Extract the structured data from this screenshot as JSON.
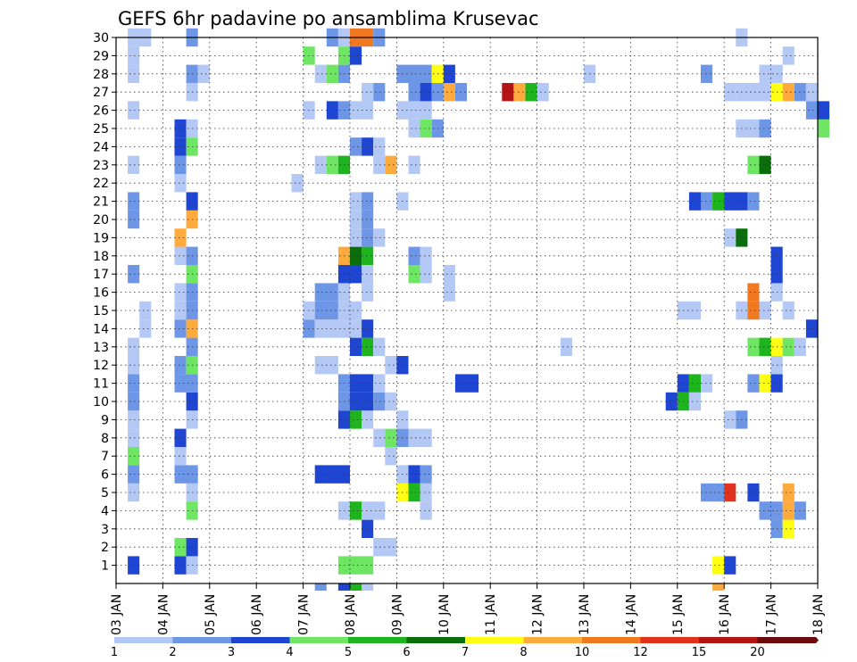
{
  "chart_data": {
    "type": "heatmap",
    "title": "GEFS 6hr padavine po ansamblima Krusevac",
    "xlabel": "",
    "ylabel": "",
    "grid": true,
    "x_range": [
      0,
      15
    ],
    "y_range": [
      0,
      30
    ],
    "x_tick_labels": [
      "03 JAN",
      "04 JAN",
      "05 JAN",
      "06 JAN",
      "07 JAN",
      "08 JAN",
      "09 JAN",
      "10 JAN",
      "11 JAN",
      "12 JAN",
      "13 JAN",
      "14 JAN",
      "15 JAN",
      "16 JAN",
      "17 JAN",
      "18 JAN"
    ],
    "y_tick_labels": [
      "1",
      "2",
      "3",
      "4",
      "5",
      "6",
      "7",
      "8",
      "9",
      "10",
      "11",
      "12",
      "13",
      "14",
      "15",
      "16",
      "17",
      "18",
      "19",
      "20",
      "21",
      "22",
      "23",
      "24",
      "25",
      "26",
      "27",
      "28",
      "29",
      "30"
    ],
    "colorbar": {
      "labels": [
        "1",
        "2",
        "3",
        "4",
        "5",
        "6",
        "7",
        "8",
        "10",
        "12",
        "15",
        "20"
      ],
      "colors": [
        "#b4c8f5",
        "#6e96e6",
        "#1e46d2",
        "#6ee664",
        "#1eb41e",
        "#0a6e0a",
        "#ffff14",
        "#ffaa3c",
        "#f0781e",
        "#e1321e",
        "#b41414",
        "#6e0a0a"
      ]
    },
    "cells_note": "each row: [ensemble_member, x_start_days_after_03_JAN, x_end_days_after_03_JAN, colorbar_class_index]",
    "cells": [
      [
        1,
        0.25,
        0.5,
        2
      ],
      [
        1,
        1.25,
        1.5,
        2
      ],
      [
        1,
        1.5,
        1.75,
        0
      ],
      [
        1,
        4.75,
        5.5,
        3
      ],
      [
        1,
        12.75,
        13.0,
        6
      ],
      [
        1,
        13.0,
        13.25,
        2
      ],
      [
        2,
        1.25,
        1.5,
        3
      ],
      [
        2,
        1.5,
        1.75,
        2
      ],
      [
        2,
        5.5,
        6.0,
        0
      ],
      [
        3,
        5.25,
        5.5,
        2
      ],
      [
        3,
        14.0,
        14.25,
        1
      ],
      [
        3,
        14.25,
        14.5,
        6
      ],
      [
        4,
        1.5,
        1.75,
        3
      ],
      [
        4,
        4.75,
        5.0,
        0
      ],
      [
        4,
        5.0,
        5.25,
        4
      ],
      [
        4,
        5.25,
        5.75,
        0
      ],
      [
        4,
        6.5,
        6.75,
        0
      ],
      [
        4,
        13.75,
        14.25,
        1
      ],
      [
        4,
        14.25,
        14.5,
        7
      ],
      [
        4,
        14.5,
        14.75,
        1
      ],
      [
        5,
        0.25,
        0.5,
        0
      ],
      [
        5,
        1.5,
        1.75,
        0
      ],
      [
        5,
        6.0,
        6.25,
        6
      ],
      [
        5,
        6.25,
        6.5,
        4
      ],
      [
        5,
        6.5,
        6.75,
        0
      ],
      [
        5,
        12.5,
        13.0,
        1
      ],
      [
        5,
        13.0,
        13.25,
        9
      ],
      [
        5,
        13.5,
        13.75,
        2
      ],
      [
        5,
        14.25,
        14.5,
        7
      ],
      [
        6,
        0.25,
        0.5,
        1
      ],
      [
        6,
        1.25,
        1.75,
        1
      ],
      [
        6,
        4.25,
        5.0,
        2
      ],
      [
        6,
        6.0,
        6.25,
        0
      ],
      [
        6,
        6.25,
        6.5,
        2
      ],
      [
        6,
        6.5,
        6.75,
        1
      ],
      [
        7,
        0.25,
        0.5,
        3
      ],
      [
        7,
        1.25,
        1.5,
        0
      ],
      [
        7,
        5.75,
        6.0,
        0
      ],
      [
        8,
        0.25,
        0.5,
        0
      ],
      [
        8,
        1.25,
        1.5,
        2
      ],
      [
        8,
        5.5,
        5.75,
        0
      ],
      [
        8,
        5.75,
        6.0,
        3
      ],
      [
        8,
        6.0,
        6.25,
        1
      ],
      [
        8,
        6.25,
        6.75,
        0
      ],
      [
        9,
        0.25,
        0.5,
        0
      ],
      [
        9,
        1.5,
        1.75,
        0
      ],
      [
        9,
        4.75,
        5.0,
        2
      ],
      [
        9,
        5.0,
        5.25,
        4
      ],
      [
        9,
        5.25,
        5.5,
        0
      ],
      [
        9,
        6.0,
        6.25,
        0
      ],
      [
        9,
        13.0,
        13.25,
        0
      ],
      [
        9,
        13.25,
        13.5,
        1
      ],
      [
        10,
        0.25,
        0.5,
        1
      ],
      [
        10,
        1.5,
        1.75,
        2
      ],
      [
        10,
        4.75,
        5.0,
        1
      ],
      [
        10,
        5.0,
        5.5,
        2
      ],
      [
        10,
        5.5,
        5.75,
        1
      ],
      [
        10,
        5.75,
        6.0,
        0
      ],
      [
        10,
        11.75,
        12.0,
        2
      ],
      [
        10,
        12.0,
        12.25,
        4
      ],
      [
        10,
        12.25,
        12.5,
        0
      ],
      [
        11,
        0.25,
        0.5,
        1
      ],
      [
        11,
        1.25,
        1.75,
        1
      ],
      [
        11,
        4.75,
        5.0,
        1
      ],
      [
        11,
        5.0,
        5.5,
        2
      ],
      [
        11,
        5.5,
        5.75,
        0
      ],
      [
        11,
        7.25,
        7.75,
        2
      ],
      [
        11,
        12.0,
        12.25,
        2
      ],
      [
        11,
        12.25,
        12.5,
        4
      ],
      [
        11,
        12.5,
        12.75,
        0
      ],
      [
        11,
        13.5,
        13.75,
        1
      ],
      [
        11,
        13.75,
        14.0,
        6
      ],
      [
        11,
        14.0,
        14.25,
        2
      ],
      [
        12,
        0.25,
        0.5,
        0
      ],
      [
        12,
        1.25,
        1.5,
        1
      ],
      [
        12,
        1.5,
        1.75,
        3
      ],
      [
        12,
        4.25,
        4.75,
        0
      ],
      [
        12,
        5.75,
        6.0,
        0
      ],
      [
        12,
        6.0,
        6.25,
        2
      ],
      [
        12,
        14.0,
        14.25,
        0
      ],
      [
        13,
        0.25,
        0.5,
        0
      ],
      [
        13,
        1.5,
        1.75,
        1
      ],
      [
        13,
        5.0,
        5.25,
        2
      ],
      [
        13,
        5.25,
        5.5,
        4
      ],
      [
        13,
        5.5,
        5.75,
        0
      ],
      [
        13,
        9.5,
        9.75,
        0
      ],
      [
        13,
        13.5,
        13.75,
        3
      ],
      [
        13,
        13.75,
        14.0,
        4
      ],
      [
        13,
        14.0,
        14.25,
        6
      ],
      [
        13,
        14.25,
        14.5,
        3
      ],
      [
        13,
        14.5,
        14.75,
        0
      ],
      [
        14,
        0.5,
        0.75,
        0
      ],
      [
        14,
        1.25,
        1.5,
        1
      ],
      [
        14,
        1.5,
        1.75,
        7
      ],
      [
        14,
        4.0,
        4.25,
        1
      ],
      [
        14,
        4.25,
        5.25,
        0
      ],
      [
        14,
        5.25,
        5.5,
        2
      ],
      [
        14,
        14.75,
        15.0,
        2
      ],
      [
        15,
        0.5,
        0.75,
        0
      ],
      [
        15,
        1.25,
        1.5,
        0
      ],
      [
        15,
        1.5,
        1.75,
        1
      ],
      [
        15,
        4.0,
        4.25,
        0
      ],
      [
        15,
        4.25,
        4.75,
        1
      ],
      [
        15,
        4.75,
        5.25,
        0
      ],
      [
        15,
        12.0,
        12.5,
        0
      ],
      [
        15,
        13.25,
        13.5,
        0
      ],
      [
        15,
        13.5,
        13.75,
        8
      ],
      [
        15,
        13.75,
        14.0,
        0
      ],
      [
        15,
        14.25,
        14.5,
        0
      ],
      [
        16,
        1.25,
        1.5,
        0
      ],
      [
        16,
        1.5,
        1.75,
        1
      ],
      [
        16,
        4.25,
        4.75,
        1
      ],
      [
        16,
        4.75,
        5.0,
        0
      ],
      [
        16,
        5.25,
        5.5,
        0
      ],
      [
        16,
        7.0,
        7.25,
        0
      ],
      [
        16,
        13.5,
        13.75,
        8
      ],
      [
        16,
        14.0,
        14.25,
        0
      ],
      [
        17,
        0.25,
        0.5,
        1
      ],
      [
        17,
        1.5,
        1.75,
        3
      ],
      [
        17,
        4.75,
        5.25,
        2
      ],
      [
        17,
        5.25,
        5.5,
        0
      ],
      [
        17,
        6.25,
        6.5,
        3
      ],
      [
        17,
        6.5,
        6.75,
        0
      ],
      [
        17,
        7.0,
        7.25,
        0
      ],
      [
        17,
        14.0,
        14.25,
        2
      ],
      [
        18,
        1.25,
        1.5,
        0
      ],
      [
        18,
        1.5,
        1.75,
        1
      ],
      [
        18,
        4.75,
        5.0,
        7
      ],
      [
        18,
        5.0,
        5.25,
        5
      ],
      [
        18,
        5.25,
        5.5,
        4
      ],
      [
        18,
        6.25,
        6.5,
        1
      ],
      [
        18,
        6.5,
        6.75,
        0
      ],
      [
        18,
        14.0,
        14.25,
        2
      ],
      [
        19,
        1.25,
        1.5,
        7
      ],
      [
        19,
        5.0,
        5.25,
        0
      ],
      [
        19,
        5.25,
        5.5,
        1
      ],
      [
        19,
        5.5,
        5.75,
        0
      ],
      [
        19,
        13.0,
        13.25,
        0
      ],
      [
        19,
        13.25,
        13.5,
        5
      ],
      [
        20,
        0.25,
        0.5,
        1
      ],
      [
        20,
        1.5,
        1.75,
        7
      ],
      [
        20,
        5.0,
        5.25,
        0
      ],
      [
        20,
        5.25,
        5.5,
        1
      ],
      [
        21,
        0.25,
        0.5,
        1
      ],
      [
        21,
        1.5,
        1.75,
        2
      ],
      [
        21,
        5.0,
        5.25,
        0
      ],
      [
        21,
        5.25,
        5.5,
        1
      ],
      [
        21,
        6.0,
        6.25,
        0
      ],
      [
        21,
        12.25,
        12.5,
        2
      ],
      [
        21,
        12.5,
        12.75,
        1
      ],
      [
        21,
        12.75,
        13.0,
        4
      ],
      [
        21,
        13.0,
        13.5,
        2
      ],
      [
        21,
        13.5,
        13.75,
        1
      ],
      [
        22,
        1.25,
        1.5,
        0
      ],
      [
        22,
        3.75,
        4.0,
        0
      ],
      [
        23,
        0.25,
        0.5,
        0
      ],
      [
        23,
        1.25,
        1.5,
        1
      ],
      [
        23,
        4.25,
        4.5,
        0
      ],
      [
        23,
        4.5,
        4.75,
        3
      ],
      [
        23,
        4.75,
        5.0,
        4
      ],
      [
        23,
        5.5,
        5.75,
        0
      ],
      [
        23,
        5.75,
        6.0,
        7
      ],
      [
        23,
        6.25,
        6.5,
        0
      ],
      [
        23,
        13.5,
        13.75,
        3
      ],
      [
        23,
        13.75,
        14.0,
        5
      ],
      [
        24,
        1.25,
        1.5,
        2
      ],
      [
        24,
        1.5,
        1.75,
        3
      ],
      [
        24,
        5.0,
        5.25,
        1
      ],
      [
        24,
        5.25,
        5.5,
        2
      ],
      [
        24,
        5.5,
        5.75,
        0
      ],
      [
        25,
        1.25,
        1.5,
        2
      ],
      [
        25,
        1.5,
        1.75,
        0
      ],
      [
        25,
        6.25,
        6.5,
        0
      ],
      [
        25,
        6.5,
        6.75,
        3
      ],
      [
        25,
        6.75,
        7.0,
        1
      ],
      [
        25,
        13.25,
        13.75,
        0
      ],
      [
        25,
        13.75,
        14.0,
        1
      ],
      [
        25,
        15.0,
        15.25,
        3
      ],
      [
        26,
        0.25,
        0.5,
        0
      ],
      [
        26,
        4.0,
        4.25,
        0
      ],
      [
        26,
        4.5,
        4.75,
        2
      ],
      [
        26,
        4.75,
        5.0,
        1
      ],
      [
        26,
        5.0,
        5.5,
        0
      ],
      [
        26,
        6.0,
        6.75,
        0
      ],
      [
        26,
        14.75,
        15.0,
        1
      ],
      [
        26,
        15.0,
        15.25,
        2
      ],
      [
        27,
        1.5,
        1.75,
        0
      ],
      [
        27,
        5.25,
        5.5,
        0
      ],
      [
        27,
        5.5,
        5.75,
        1
      ],
      [
        27,
        6.25,
        6.5,
        1
      ],
      [
        27,
        6.5,
        6.75,
        2
      ],
      [
        27,
        6.75,
        7.0,
        1
      ],
      [
        27,
        7.0,
        7.25,
        7
      ],
      [
        27,
        7.25,
        7.5,
        1
      ],
      [
        27,
        8.25,
        8.5,
        10
      ],
      [
        27,
        8.5,
        8.75,
        7
      ],
      [
        27,
        8.75,
        9.0,
        4
      ],
      [
        27,
        9.0,
        9.25,
        0
      ],
      [
        27,
        13.0,
        13.25,
        0
      ],
      [
        27,
        13.25,
        14.0,
        0
      ],
      [
        27,
        14.0,
        14.25,
        6
      ],
      [
        27,
        14.25,
        14.5,
        7
      ],
      [
        27,
        14.5,
        14.75,
        1
      ],
      [
        27,
        14.75,
        15.0,
        0
      ],
      [
        28,
        0.25,
        0.5,
        0
      ],
      [
        28,
        1.5,
        1.75,
        1
      ],
      [
        28,
        1.75,
        2.0,
        0
      ],
      [
        28,
        4.25,
        4.5,
        0
      ],
      [
        28,
        4.5,
        4.75,
        3
      ],
      [
        28,
        4.75,
        5.0,
        1
      ],
      [
        28,
        6.0,
        6.75,
        1
      ],
      [
        28,
        6.75,
        7.0,
        6
      ],
      [
        28,
        7.0,
        7.25,
        2
      ],
      [
        28,
        10.0,
        10.25,
        0
      ],
      [
        28,
        12.5,
        12.75,
        1
      ],
      [
        28,
        13.75,
        14.25,
        0
      ],
      [
        29,
        0.25,
        0.5,
        0
      ],
      [
        29,
        4.0,
        4.25,
        3
      ],
      [
        29,
        4.75,
        5.0,
        3
      ],
      [
        29,
        5.0,
        5.25,
        2
      ],
      [
        29,
        14.25,
        14.5,
        0
      ],
      [
        30,
        0.25,
        0.75,
        0
      ],
      [
        30,
        1.5,
        1.75,
        1
      ],
      [
        30,
        4.5,
        4.75,
        1
      ],
      [
        30,
        4.75,
        5.0,
        0
      ],
      [
        30,
        5.0,
        5.5,
        8
      ],
      [
        30,
        5.5,
        5.75,
        1
      ],
      [
        30,
        13.25,
        13.5,
        0
      ]
    ],
    "below_axis_cells": [
      [
        4.25,
        4.5,
        1
      ],
      [
        4.75,
        5.0,
        2
      ],
      [
        5.0,
        5.25,
        4
      ],
      [
        5.25,
        5.5,
        0
      ],
      [
        12.75,
        13.0,
        7
      ]
    ],
    "type_detail": "ensemble member (y) vs forecast time (x), cell color = 6-hour precipitation class"
  }
}
